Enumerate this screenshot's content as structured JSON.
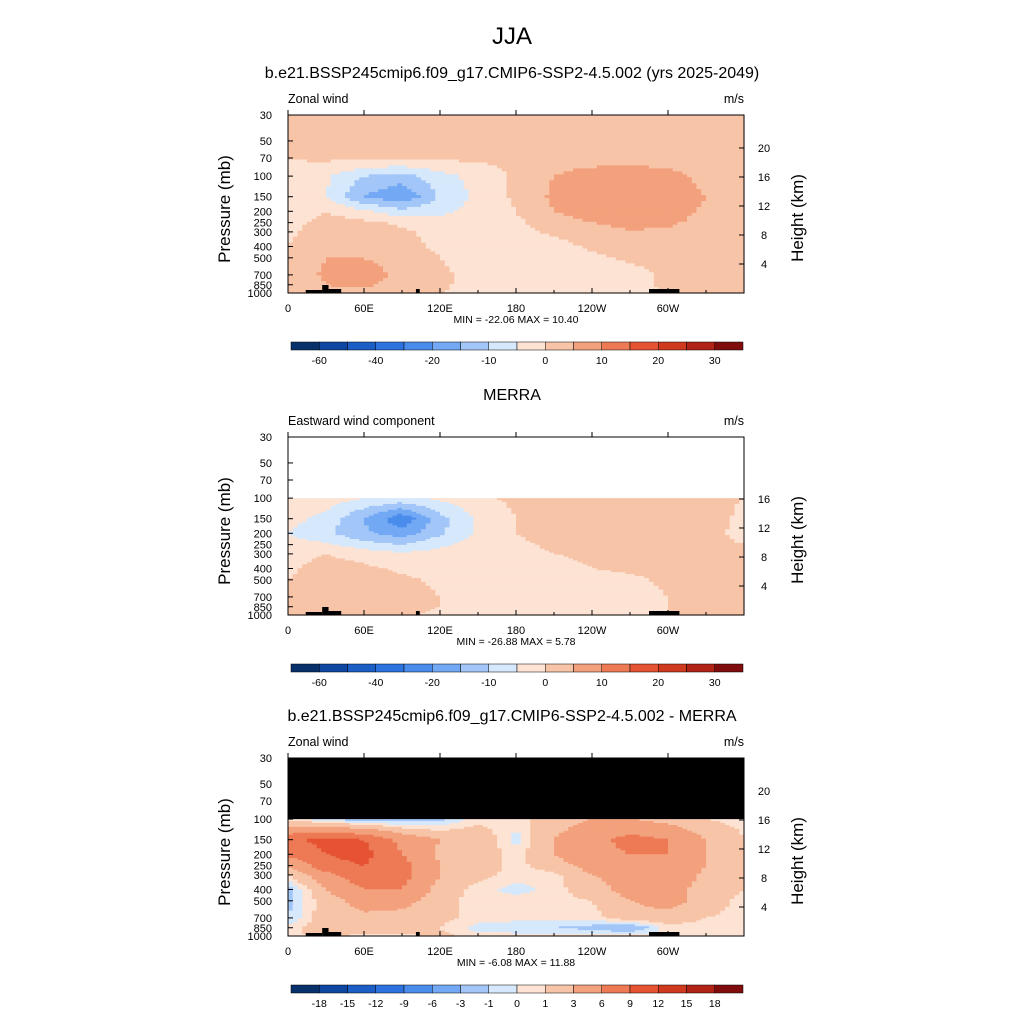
{
  "figure": {
    "title": "JJA"
  },
  "chart_data": [
    {
      "type": "heatmap",
      "title": "b.e21.BSSP245cmip6.f09_g17.CMIP6-SSP2-4.5.002 (yrs 2025-2049)",
      "left_label": "Zonal wind",
      "right_label": "m/s",
      "ylabel": "Pressure (mb)",
      "y2label": "Height (km)",
      "x_ticks": [
        "0",
        "60E",
        "120E",
        "180",
        "120W",
        "60W"
      ],
      "y_ticks": [
        "30",
        "50",
        "70",
        "100",
        "150",
        "200",
        "250",
        "300",
        "400",
        "500",
        "700",
        "850",
        "1000"
      ],
      "y2_ticks": [
        "4",
        "8",
        "12",
        "16",
        "20"
      ],
      "stats": "MIN = -22.06  MAX =  10.40",
      "colorbar_labels": [
        "-60",
        "-40",
        "-20",
        "-10",
        "0",
        "10",
        "20",
        "30"
      ],
      "levels": [
        -70,
        -60,
        -50,
        -40,
        -30,
        -20,
        -15,
        -10,
        -5,
        0,
        5,
        10,
        15,
        20,
        25,
        30,
        35
      ],
      "colors": [
        "#08306b",
        "#0d47a1",
        "#1b5ec6",
        "#2c73e0",
        "#4a8cec",
        "#73a9f4",
        "#a3c6f8",
        "#d6e8fb",
        "#fde3d3",
        "#f8c4a8",
        "#f3a07c",
        "#ed7a55",
        "#e65332",
        "#cf3a1f",
        "#b02316",
        "#7f0d0d"
      ],
      "ptop": 30,
      "x": [
        0,
        30,
        60,
        90,
        120,
        150,
        180,
        210,
        240,
        270,
        300,
        330,
        360
      ],
      "p": [
        1000,
        850,
        700,
        500,
        400,
        300,
        250,
        200,
        150,
        100,
        70,
        50,
        30
      ],
      "grid": [
        [
          0,
          4,
          3,
          1,
          0,
          -2,
          -3,
          -3,
          -2,
          -1,
          0,
          0,
          0
        ],
        [
          1,
          5,
          6,
          3,
          1,
          -2,
          -4,
          -4,
          -3,
          -2,
          1,
          1,
          1
        ],
        [
          1,
          6,
          7,
          4,
          1,
          -2,
          -4,
          -4,
          -3,
          -2,
          1,
          2,
          1
        ],
        [
          1,
          5,
          5,
          3,
          0,
          -2,
          -3,
          -3,
          -1,
          1,
          2,
          2,
          1
        ],
        [
          0,
          4,
          4,
          2,
          -1,
          -3,
          -3,
          -2,
          1,
          3,
          3,
          2,
          1
        ],
        [
          -1,
          3,
          3,
          1,
          -2,
          -3,
          -2,
          1,
          3,
          5,
          4,
          2,
          1
        ],
        [
          -2,
          2,
          1,
          -1,
          -3,
          -3,
          -1,
          3,
          5,
          6,
          6,
          3,
          1
        ],
        [
          -3,
          0,
          -4,
          -8,
          -6,
          -3,
          0,
          5,
          7,
          8,
          8,
          4,
          1
        ],
        [
          -2,
          -5,
          -15,
          -20,
          -9,
          -4,
          1,
          6,
          8,
          10,
          9,
          5,
          1
        ],
        [
          -1,
          -4,
          -10,
          -12,
          -7,
          -3,
          1,
          5,
          8,
          9,
          7,
          3,
          1
        ],
        [
          0,
          1,
          1,
          1,
          1,
          1,
          1,
          2,
          2,
          2,
          2,
          1,
          1
        ],
        [
          1,
          1,
          1,
          1,
          1,
          1,
          1,
          1,
          1,
          1,
          1,
          1,
          1
        ],
        [
          1,
          1,
          1,
          1,
          1,
          1,
          1,
          1,
          1,
          1,
          1,
          1,
          1
        ]
      ]
    },
    {
      "type": "heatmap",
      "title": "MERRA",
      "left_label": "Eastward wind component",
      "right_label": "m/s",
      "ylabel": "Pressure (mb)",
      "y2label": "Height (km)",
      "x_ticks": [
        "0",
        "60E",
        "120E",
        "180",
        "120W",
        "60W"
      ],
      "y_ticks": [
        "30",
        "50",
        "70",
        "100",
        "150",
        "200",
        "250",
        "300",
        "400",
        "500",
        "700",
        "850",
        "1000"
      ],
      "y2_ticks": [
        "4",
        "8",
        "12",
        "16"
      ],
      "stats": "MIN = -26.88  MAX =   5.78",
      "colorbar_labels": [
        "-60",
        "-40",
        "-20",
        "-10",
        "0",
        "10",
        "20",
        "30"
      ],
      "levels": [
        -70,
        -60,
        -50,
        -40,
        -30,
        -20,
        -15,
        -10,
        -5,
        0,
        5,
        10,
        15,
        20,
        25,
        30,
        35
      ],
      "colors": [
        "#08306b",
        "#0d47a1",
        "#1b5ec6",
        "#2c73e0",
        "#4a8cec",
        "#73a9f4",
        "#a3c6f8",
        "#d6e8fb",
        "#fde3d3",
        "#f8c4a8",
        "#f3a07c",
        "#ed7a55",
        "#e65332",
        "#cf3a1f",
        "#b02316",
        "#7f0d0d"
      ],
      "ptop": 100,
      "x": [
        0,
        30,
        60,
        90,
        120,
        150,
        180,
        210,
        240,
        270,
        300,
        330,
        360
      ],
      "p": [
        1000,
        850,
        700,
        500,
        400,
        300,
        250,
        200,
        150,
        100
      ],
      "grid": [
        [
          0,
          3,
          3,
          1,
          -1,
          -2,
          -3,
          -3,
          -2,
          -2,
          0,
          0,
          0
        ],
        [
          1,
          4,
          4,
          2,
          0,
          -2,
          -3,
          -3,
          -3,
          -2,
          0,
          1,
          0
        ],
        [
          1,
          4,
          5,
          2,
          0,
          -2,
          -3,
          -3,
          -3,
          -2,
          0,
          1,
          0
        ],
        [
          0,
          3,
          3,
          1,
          -1,
          -2,
          -3,
          -3,
          -2,
          -1,
          1,
          1,
          0
        ],
        [
          -1,
          2,
          1,
          -1,
          -2,
          -3,
          -3,
          -2,
          0,
          1,
          1,
          1,
          0
        ],
        [
          -2,
          0,
          -2,
          -4,
          -3,
          -3,
          -2,
          0,
          1,
          2,
          2,
          1,
          0
        ],
        [
          -3,
          -4,
          -8,
          -10,
          -6,
          -3,
          -1,
          1,
          2,
          3,
          2,
          1,
          0
        ],
        [
          -5,
          -9,
          -14,
          -18,
          -11,
          -4,
          0,
          2,
          3,
          3,
          3,
          1,
          -1
        ],
        [
          -3,
          -7,
          -15,
          -24,
          -12,
          -4,
          0,
          2,
          3,
          3,
          3,
          2,
          -1
        ],
        [
          -1,
          -2,
          -5,
          -6,
          -4,
          -1,
          1,
          2,
          2,
          2,
          2,
          1,
          0
        ]
      ]
    },
    {
      "type": "heatmap",
      "title": "b.e21.BSSP245cmip6.f09_g17.CMIP6-SSP2-4.5.002 - MERRA",
      "left_label": "Zonal wind",
      "right_label": "m/s",
      "ylabel": "Pressure (mb)",
      "y2label": "Height (km)",
      "x_ticks": [
        "0",
        "60E",
        "120E",
        "180",
        "120W",
        "60W"
      ],
      "y_ticks": [
        "30",
        "50",
        "70",
        "100",
        "150",
        "200",
        "250",
        "300",
        "400",
        "500",
        "700",
        "850",
        "1000"
      ],
      "y2_ticks": [
        "4",
        "8",
        "12",
        "16",
        "20"
      ],
      "stats": "MIN =  -6.08  MAX =  11.88",
      "colorbar_labels": [
        "-18",
        "-15",
        "-12",
        "-9",
        "-6",
        "-3",
        "-1",
        "0",
        "1",
        "3",
        "6",
        "9",
        "12",
        "15",
        "18"
      ],
      "levels": [
        -21,
        -18,
        -15,
        -12,
        -9,
        -6,
        -3,
        -1,
        0,
        1,
        3,
        6,
        9,
        12,
        15,
        18,
        21
      ],
      "colors": [
        "#08306b",
        "#0d47a1",
        "#1b5ec6",
        "#2c73e0",
        "#4a8cec",
        "#73a9f4",
        "#a3c6f8",
        "#d6e8fb",
        "#fde3d3",
        "#f8c4a8",
        "#f3a07c",
        "#ed7a55",
        "#e65332",
        "#cf3a1f",
        "#b02316",
        "#7f0d0d"
      ],
      "ptop": 30,
      "masked_above": 100,
      "x": [
        0,
        30,
        60,
        90,
        120,
        150,
        180,
        210,
        240,
        270,
        300,
        330,
        360
      ],
      "p": [
        1000,
        850,
        700,
        500,
        400,
        300,
        250,
        200,
        150,
        100
      ],
      "grid": [
        [
          0.5,
          1.5,
          0.5,
          0.5,
          1.5,
          0.5,
          0.5,
          0.5,
          0.5,
          0.5,
          0.5,
          0.5,
          0.5
        ],
        [
          0.5,
          2,
          2,
          2,
          1,
          -0.5,
          -1,
          -1,
          -1.5,
          -2.5,
          0.5,
          0.5,
          0.5
        ],
        [
          -1,
          2,
          2.5,
          2,
          1.5,
          0.5,
          0.5,
          0.5,
          0.5,
          2,
          2,
          1,
          0.5
        ],
        [
          -1.5,
          2,
          4,
          4,
          1.5,
          0.5,
          0.5,
          0.5,
          1,
          3,
          4,
          2,
          0.5
        ],
        [
          -1.5,
          3,
          6,
          6,
          2,
          0.5,
          -0.5,
          0.5,
          2,
          4,
          4,
          2,
          1
        ],
        [
          1,
          5,
          8,
          7,
          3,
          1.5,
          0.5,
          0.5,
          3,
          4,
          5,
          2.5,
          1
        ],
        [
          3,
          8,
          9,
          7,
          3,
          2,
          0.5,
          2,
          4,
          5,
          5,
          3,
          1
        ],
        [
          7,
          9,
          10,
          6,
          2.5,
          2,
          0.5,
          3,
          5,
          6,
          6,
          3,
          1
        ],
        [
          8,
          10,
          9,
          5,
          3,
          2.5,
          -0.5,
          3,
          5,
          7,
          6,
          3,
          1
        ],
        [
          0.5,
          -1,
          -2,
          -2,
          -1.5,
          0.5,
          0.5,
          2,
          3,
          3,
          2,
          1,
          0.5
        ]
      ]
    }
  ]
}
